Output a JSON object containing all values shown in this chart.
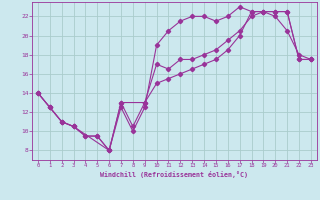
{
  "xlabel": "Windchill (Refroidissement éolien,°C)",
  "background_color": "#cce8ee",
  "grid_color": "#aacccc",
  "line_color": "#993399",
  "xlim": [
    -0.5,
    23.5
  ],
  "ylim": [
    7.0,
    23.5
  ],
  "yticks": [
    8,
    10,
    12,
    14,
    16,
    18,
    20,
    22
  ],
  "xticks": [
    0,
    1,
    2,
    3,
    4,
    5,
    6,
    7,
    8,
    9,
    10,
    11,
    12,
    13,
    14,
    15,
    16,
    17,
    18,
    19,
    20,
    21,
    22,
    23
  ],
  "line1_x": [
    0,
    1,
    2,
    3,
    4,
    5,
    6,
    7,
    8,
    9,
    10,
    11,
    12,
    13,
    14,
    15,
    16,
    17,
    18,
    19,
    20,
    21,
    22,
    23
  ],
  "line1_y": [
    14.0,
    12.5,
    11.0,
    10.5,
    9.5,
    9.5,
    8.0,
    12.5,
    10.0,
    12.5,
    19.0,
    20.5,
    21.5,
    22.0,
    22.0,
    21.5,
    22.0,
    23.0,
    22.5,
    22.5,
    22.0,
    20.5,
    18.0,
    17.5
  ],
  "line2_x": [
    0,
    1,
    2,
    3,
    6,
    7,
    9,
    10,
    11,
    12,
    13,
    14,
    15,
    16,
    17,
    18,
    19,
    20,
    21,
    22,
    23
  ],
  "line2_y": [
    14.0,
    12.5,
    11.0,
    10.5,
    8.0,
    13.0,
    13.0,
    17.0,
    16.5,
    17.5,
    17.5,
    18.0,
    18.5,
    19.5,
    20.5,
    22.0,
    22.5,
    22.5,
    22.5,
    17.5,
    17.5
  ],
  "line3_x": [
    0,
    1,
    2,
    3,
    4,
    5,
    6,
    7,
    8,
    9,
    10,
    11,
    12,
    13,
    14,
    15,
    16,
    17,
    18,
    19,
    20,
    21,
    22,
    23
  ],
  "line3_y": [
    14.0,
    12.5,
    11.0,
    10.5,
    9.5,
    9.5,
    8.0,
    13.0,
    10.5,
    13.0,
    15.0,
    15.5,
    16.0,
    16.5,
    17.0,
    17.5,
    18.5,
    20.0,
    22.5,
    22.5,
    22.5,
    22.5,
    17.5,
    17.5
  ]
}
